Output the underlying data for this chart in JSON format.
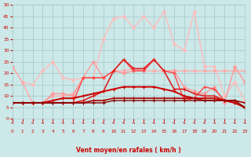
{
  "title": "",
  "xlabel": "Vent moyen/en rafales ( km/h )",
  "xlim": [
    0,
    23
  ],
  "ylim": [
    0,
    50
  ],
  "xticks": [
    0,
    1,
    2,
    3,
    4,
    5,
    6,
    7,
    8,
    9,
    10,
    11,
    12,
    13,
    14,
    15,
    16,
    17,
    18,
    19,
    20,
    21,
    22,
    23
  ],
  "yticks": [
    0,
    5,
    10,
    15,
    20,
    25,
    30,
    35,
    40,
    45,
    50
  ],
  "background_color": "#cce8e8",
  "grid_color": "#aacccc",
  "lines": [
    {
      "x": [
        0,
        1,
        2,
        3,
        4,
        5,
        6,
        7,
        8,
        9,
        10,
        11,
        12,
        13,
        14,
        15,
        16,
        17,
        18,
        19,
        20,
        21,
        22,
        23
      ],
      "y": [
        23,
        16,
        15,
        21,
        25,
        18,
        17,
        18,
        18,
        35,
        44,
        45,
        40,
        45,
        40,
        47,
        33,
        30,
        47,
        23,
        23,
        10,
        16,
        8
      ],
      "color": "#ffbbbb",
      "lw": 1.0,
      "marker": "D",
      "ms": 2.0
    },
    {
      "x": [
        0,
        1,
        2,
        3,
        4,
        5,
        6,
        7,
        8,
        9,
        10,
        11,
        12,
        13,
        14,
        15,
        16,
        17,
        18,
        19,
        20,
        21,
        22,
        23
      ],
      "y": [
        23,
        16,
        7,
        7,
        10,
        10,
        11,
        18,
        18,
        18,
        21,
        21,
        22,
        21,
        21,
        21,
        21,
        21,
        21,
        21,
        21,
        21,
        21,
        21
      ],
      "color": "#ffaaaa",
      "lw": 1.0,
      "marker": "D",
      "ms": 2.0
    },
    {
      "x": [
        0,
        1,
        2,
        3,
        4,
        5,
        6,
        7,
        8,
        9,
        10,
        11,
        12,
        13,
        14,
        15,
        16,
        17,
        18,
        19,
        20,
        21,
        22,
        23
      ],
      "y": [
        7,
        7,
        7,
        7,
        11,
        11,
        10,
        18,
        25,
        18,
        21,
        20,
        21,
        21,
        26,
        21,
        21,
        14,
        12,
        11,
        14,
        7,
        23,
        16
      ],
      "color": "#ff9999",
      "lw": 1.0,
      "marker": "D",
      "ms": 2.0
    },
    {
      "x": [
        0,
        1,
        2,
        3,
        4,
        5,
        6,
        7,
        8,
        9,
        10,
        11,
        12,
        13,
        14,
        15,
        16,
        17,
        18,
        19,
        20,
        21,
        22,
        23
      ],
      "y": [
        7,
        7,
        7,
        7,
        7,
        7,
        7,
        18,
        18,
        18,
        21,
        26,
        21,
        21,
        26,
        21,
        20,
        8,
        9,
        14,
        13,
        8,
        7,
        5
      ],
      "color": "#ff4444",
      "lw": 1.0,
      "marker": "+",
      "ms": 3.5
    },
    {
      "x": [
        0,
        1,
        2,
        3,
        4,
        5,
        6,
        7,
        8,
        9,
        10,
        11,
        12,
        13,
        14,
        15,
        16,
        17,
        18,
        19,
        20,
        21,
        22,
        23
      ],
      "y": [
        7,
        7,
        7,
        7,
        7,
        7,
        7,
        8,
        10,
        12,
        21,
        26,
        22,
        22,
        26,
        21,
        13,
        13,
        11,
        10,
        10,
        8,
        7,
        5
      ],
      "color": "#dd2222",
      "lw": 1.2,
      "marker": "+",
      "ms": 3.5
    },
    {
      "x": [
        0,
        1,
        2,
        3,
        4,
        5,
        6,
        7,
        8,
        9,
        10,
        11,
        12,
        13,
        14,
        15,
        16,
        17,
        18,
        19,
        20,
        21,
        22,
        23
      ],
      "y": [
        7,
        7,
        7,
        7,
        8,
        9,
        9,
        10,
        11,
        12,
        13,
        14,
        14,
        14,
        14,
        13,
        12,
        10,
        9,
        9,
        9,
        8,
        7,
        5
      ],
      "color": "#cc0000",
      "lw": 1.4,
      "marker": "+",
      "ms": 3.0
    },
    {
      "x": [
        0,
        1,
        2,
        3,
        4,
        5,
        6,
        7,
        8,
        9,
        10,
        11,
        12,
        13,
        14,
        15,
        16,
        17,
        18,
        19,
        20,
        21,
        22,
        23
      ],
      "y": [
        7,
        7,
        7,
        7,
        7,
        7,
        7,
        7,
        8,
        8,
        9,
        9,
        9,
        9,
        9,
        9,
        9,
        9,
        9,
        8,
        8,
        8,
        8,
        7
      ],
      "color": "#aa0000",
      "lw": 1.2,
      "marker": "+",
      "ms": 3.0
    },
    {
      "x": [
        0,
        1,
        2,
        3,
        4,
        5,
        6,
        7,
        8,
        9,
        10,
        11,
        12,
        13,
        14,
        15,
        16,
        17,
        18,
        19,
        20,
        21,
        22,
        23
      ],
      "y": [
        7,
        7,
        7,
        7,
        7,
        7,
        7,
        7,
        7,
        7,
        8,
        8,
        8,
        8,
        8,
        8,
        8,
        8,
        8,
        8,
        8,
        8,
        8,
        5
      ],
      "color": "#880000",
      "lw": 1.0,
      "marker": "+",
      "ms": 3.0
    }
  ],
  "arrow_color": "#cc3333",
  "tick_color": "#cc0000",
  "axis_label_color": "#cc0000"
}
